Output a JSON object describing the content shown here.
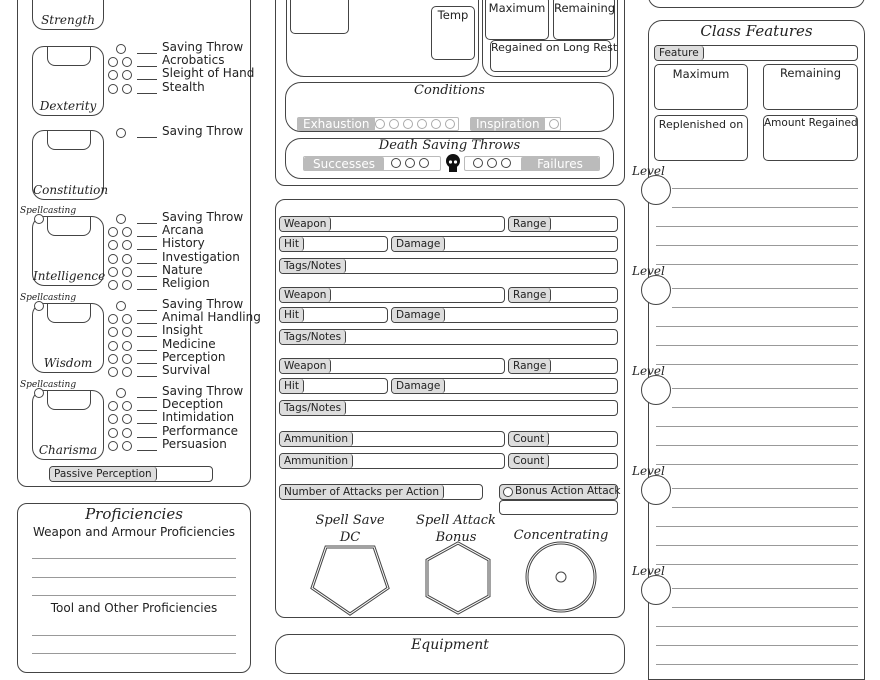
{
  "abilities": [
    {
      "name": "Strength",
      "spellcasting": false,
      "skills": []
    },
    {
      "name": "Dexterity",
      "spellcasting": false,
      "skills": [
        "Acrobatics",
        "Sleight of Hand",
        "Stealth"
      ]
    },
    {
      "name": "Constitution",
      "spellcasting": false,
      "skills": []
    },
    {
      "name": "Intelligence",
      "spellcasting": true,
      "skills": [
        "Arcana",
        "History",
        "Investigation",
        "Nature",
        "Religion"
      ]
    },
    {
      "name": "Wisdom",
      "spellcasting": true,
      "skills": [
        "Animal Handling",
        "Insight",
        "Medicine",
        "Perception",
        "Survival"
      ]
    },
    {
      "name": "Charisma",
      "spellcasting": true,
      "skills": [
        "Deception",
        "Intimidation",
        "Performance",
        "Persuasion"
      ]
    }
  ],
  "saving_throw_label": "Saving Throw",
  "spellcasting_label": "Spellcasting",
  "passive_perception_label": "Passive Perception",
  "proficiencies": {
    "title": "Proficiencies",
    "weapon_armour": "Weapon and Armour Proficiencies",
    "tool_other": "Tool and Other Proficiencies"
  },
  "hp": {
    "temp": "Temp",
    "maximum": "Maximum",
    "remaining": "Remaining",
    "regained": "Regained on Long Rest"
  },
  "conditions": {
    "title": "Conditions",
    "exhaustion": "Exhaustion",
    "exhaustion_levels": 6,
    "inspiration": "Inspiration"
  },
  "death_saves": {
    "title": "Death Saving Throws",
    "successes": "Successes",
    "failures": "Failures",
    "icon": "skull-icon"
  },
  "attacks": {
    "weapon": "Weapon",
    "range": "Range",
    "hit": "Hit",
    "damage": "Damage",
    "tags": "Tags/Notes",
    "ammunition": "Ammunition",
    "count": "Count",
    "attacks_per_action": "Number of Attacks per Action",
    "bonus_action_attack": "Bonus Action Attack"
  },
  "spell": {
    "save_dc": "Spell Save DC",
    "attack_bonus": "Spell Attack Bonus",
    "concentrating": "Concentrating"
  },
  "equipment": {
    "title": "Equipment"
  },
  "class_features": {
    "title": "Class Features",
    "feature": "Feature",
    "maximum": "Maximum",
    "remaining": "Remaining",
    "replenished_on": "Replenished on",
    "amount_regained": "Amount Regained",
    "level_label": "Level"
  }
}
